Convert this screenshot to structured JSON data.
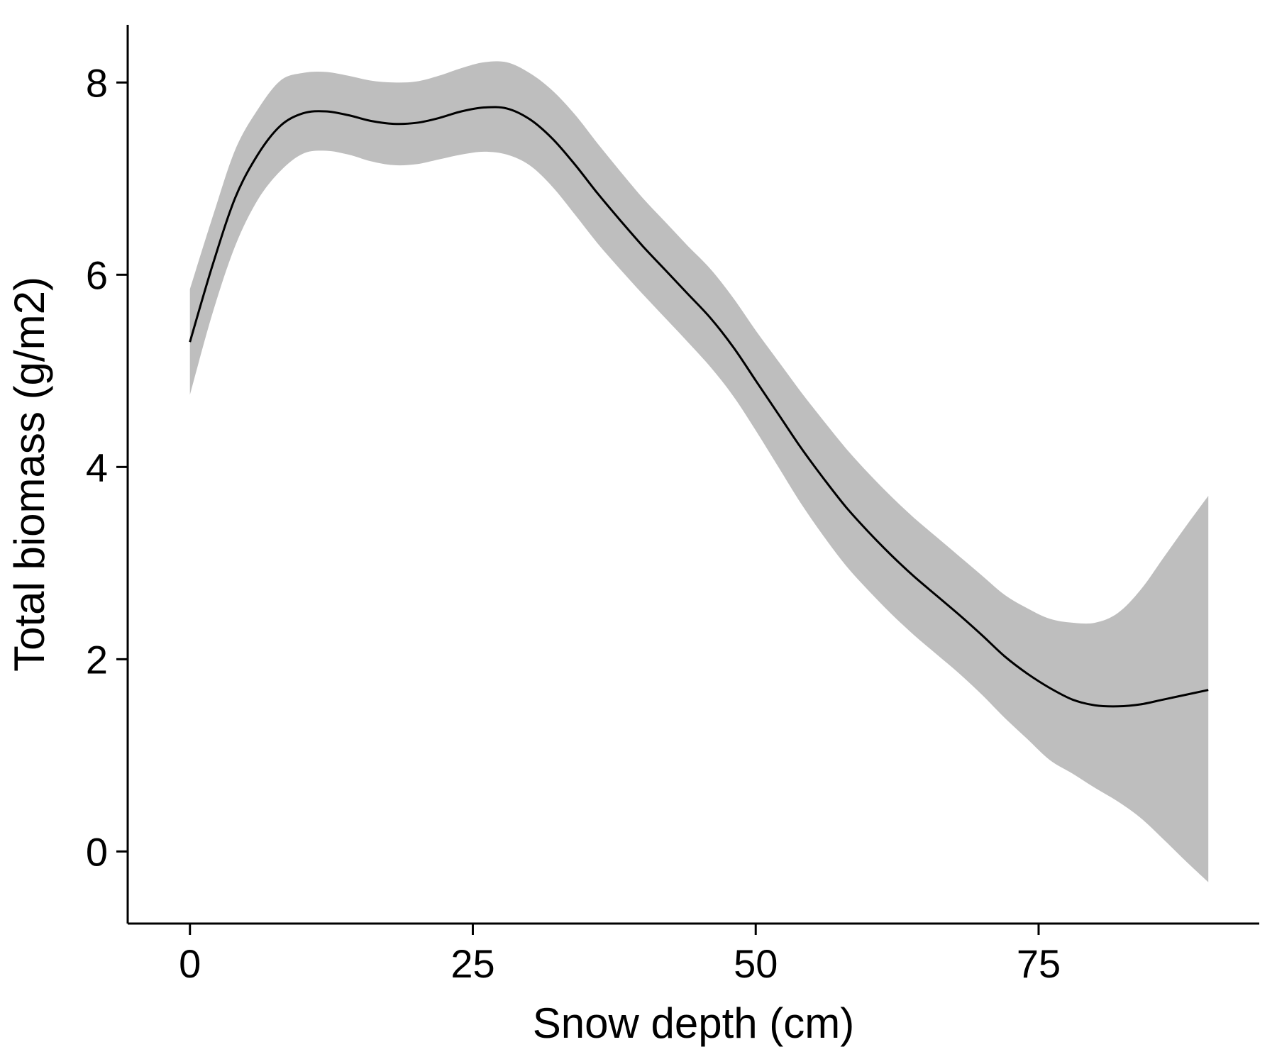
{
  "chart_data": {
    "type": "line",
    "title": "",
    "xlabel": "Snow depth (cm)",
    "ylabel": "Total biomass (g/m2)",
    "xlim": [
      -5.5,
      94.5
    ],
    "ylim": [
      -0.75,
      8.6
    ],
    "x_ticks": [
      0,
      25,
      50,
      75
    ],
    "y_ticks": [
      0,
      2,
      4,
      6,
      8
    ],
    "x_tick_labels": [
      "0",
      "25",
      "50",
      "75"
    ],
    "y_tick_labels": [
      "0",
      "2",
      "4",
      "6",
      "8"
    ],
    "grid": false,
    "legend": "none",
    "line_color": "#000000",
    "band_color": "#bebebe",
    "series": [
      {
        "x": [
          0,
          2,
          4,
          6,
          8,
          10,
          12,
          14,
          16,
          18,
          20,
          22,
          24,
          26,
          28,
          30,
          32,
          34,
          36,
          38,
          40,
          42,
          44,
          46,
          48,
          50,
          52,
          54,
          56,
          58,
          60,
          62,
          64,
          66,
          68,
          70,
          72,
          74,
          76,
          78,
          80,
          82,
          84,
          86,
          88,
          90
        ],
        "y": [
          5.3,
          6.1,
          6.8,
          7.25,
          7.55,
          7.68,
          7.7,
          7.66,
          7.6,
          7.57,
          7.58,
          7.63,
          7.7,
          7.74,
          7.73,
          7.62,
          7.42,
          7.15,
          6.85,
          6.57,
          6.3,
          6.05,
          5.8,
          5.55,
          5.25,
          4.9,
          4.55,
          4.2,
          3.88,
          3.58,
          3.32,
          3.08,
          2.86,
          2.66,
          2.46,
          2.25,
          2.03,
          1.85,
          1.7,
          1.58,
          1.52,
          1.51,
          1.53,
          1.58,
          1.63,
          1.68
        ],
        "lower": [
          4.75,
          5.6,
          6.3,
          6.78,
          7.08,
          7.26,
          7.29,
          7.25,
          7.18,
          7.14,
          7.15,
          7.2,
          7.25,
          7.28,
          7.25,
          7.14,
          6.92,
          6.63,
          6.33,
          6.06,
          5.8,
          5.55,
          5.3,
          5.04,
          4.74,
          4.38,
          4.0,
          3.62,
          3.28,
          2.97,
          2.71,
          2.47,
          2.25,
          2.05,
          1.85,
          1.63,
          1.39,
          1.17,
          0.95,
          0.81,
          0.66,
          0.52,
          0.35,
          0.13,
          -0.1,
          -0.32
        ],
        "upper": [
          5.85,
          6.6,
          7.3,
          7.72,
          8.02,
          8.1,
          8.11,
          8.07,
          8.02,
          8.0,
          8.01,
          8.07,
          8.15,
          8.21,
          8.21,
          8.1,
          7.92,
          7.67,
          7.37,
          7.08,
          6.8,
          6.55,
          6.3,
          6.06,
          5.76,
          5.42,
          5.1,
          4.78,
          4.48,
          4.19,
          3.93,
          3.69,
          3.47,
          3.27,
          3.07,
          2.87,
          2.67,
          2.53,
          2.42,
          2.38,
          2.38,
          2.48,
          2.72,
          3.05,
          3.38,
          3.7
        ]
      }
    ]
  }
}
